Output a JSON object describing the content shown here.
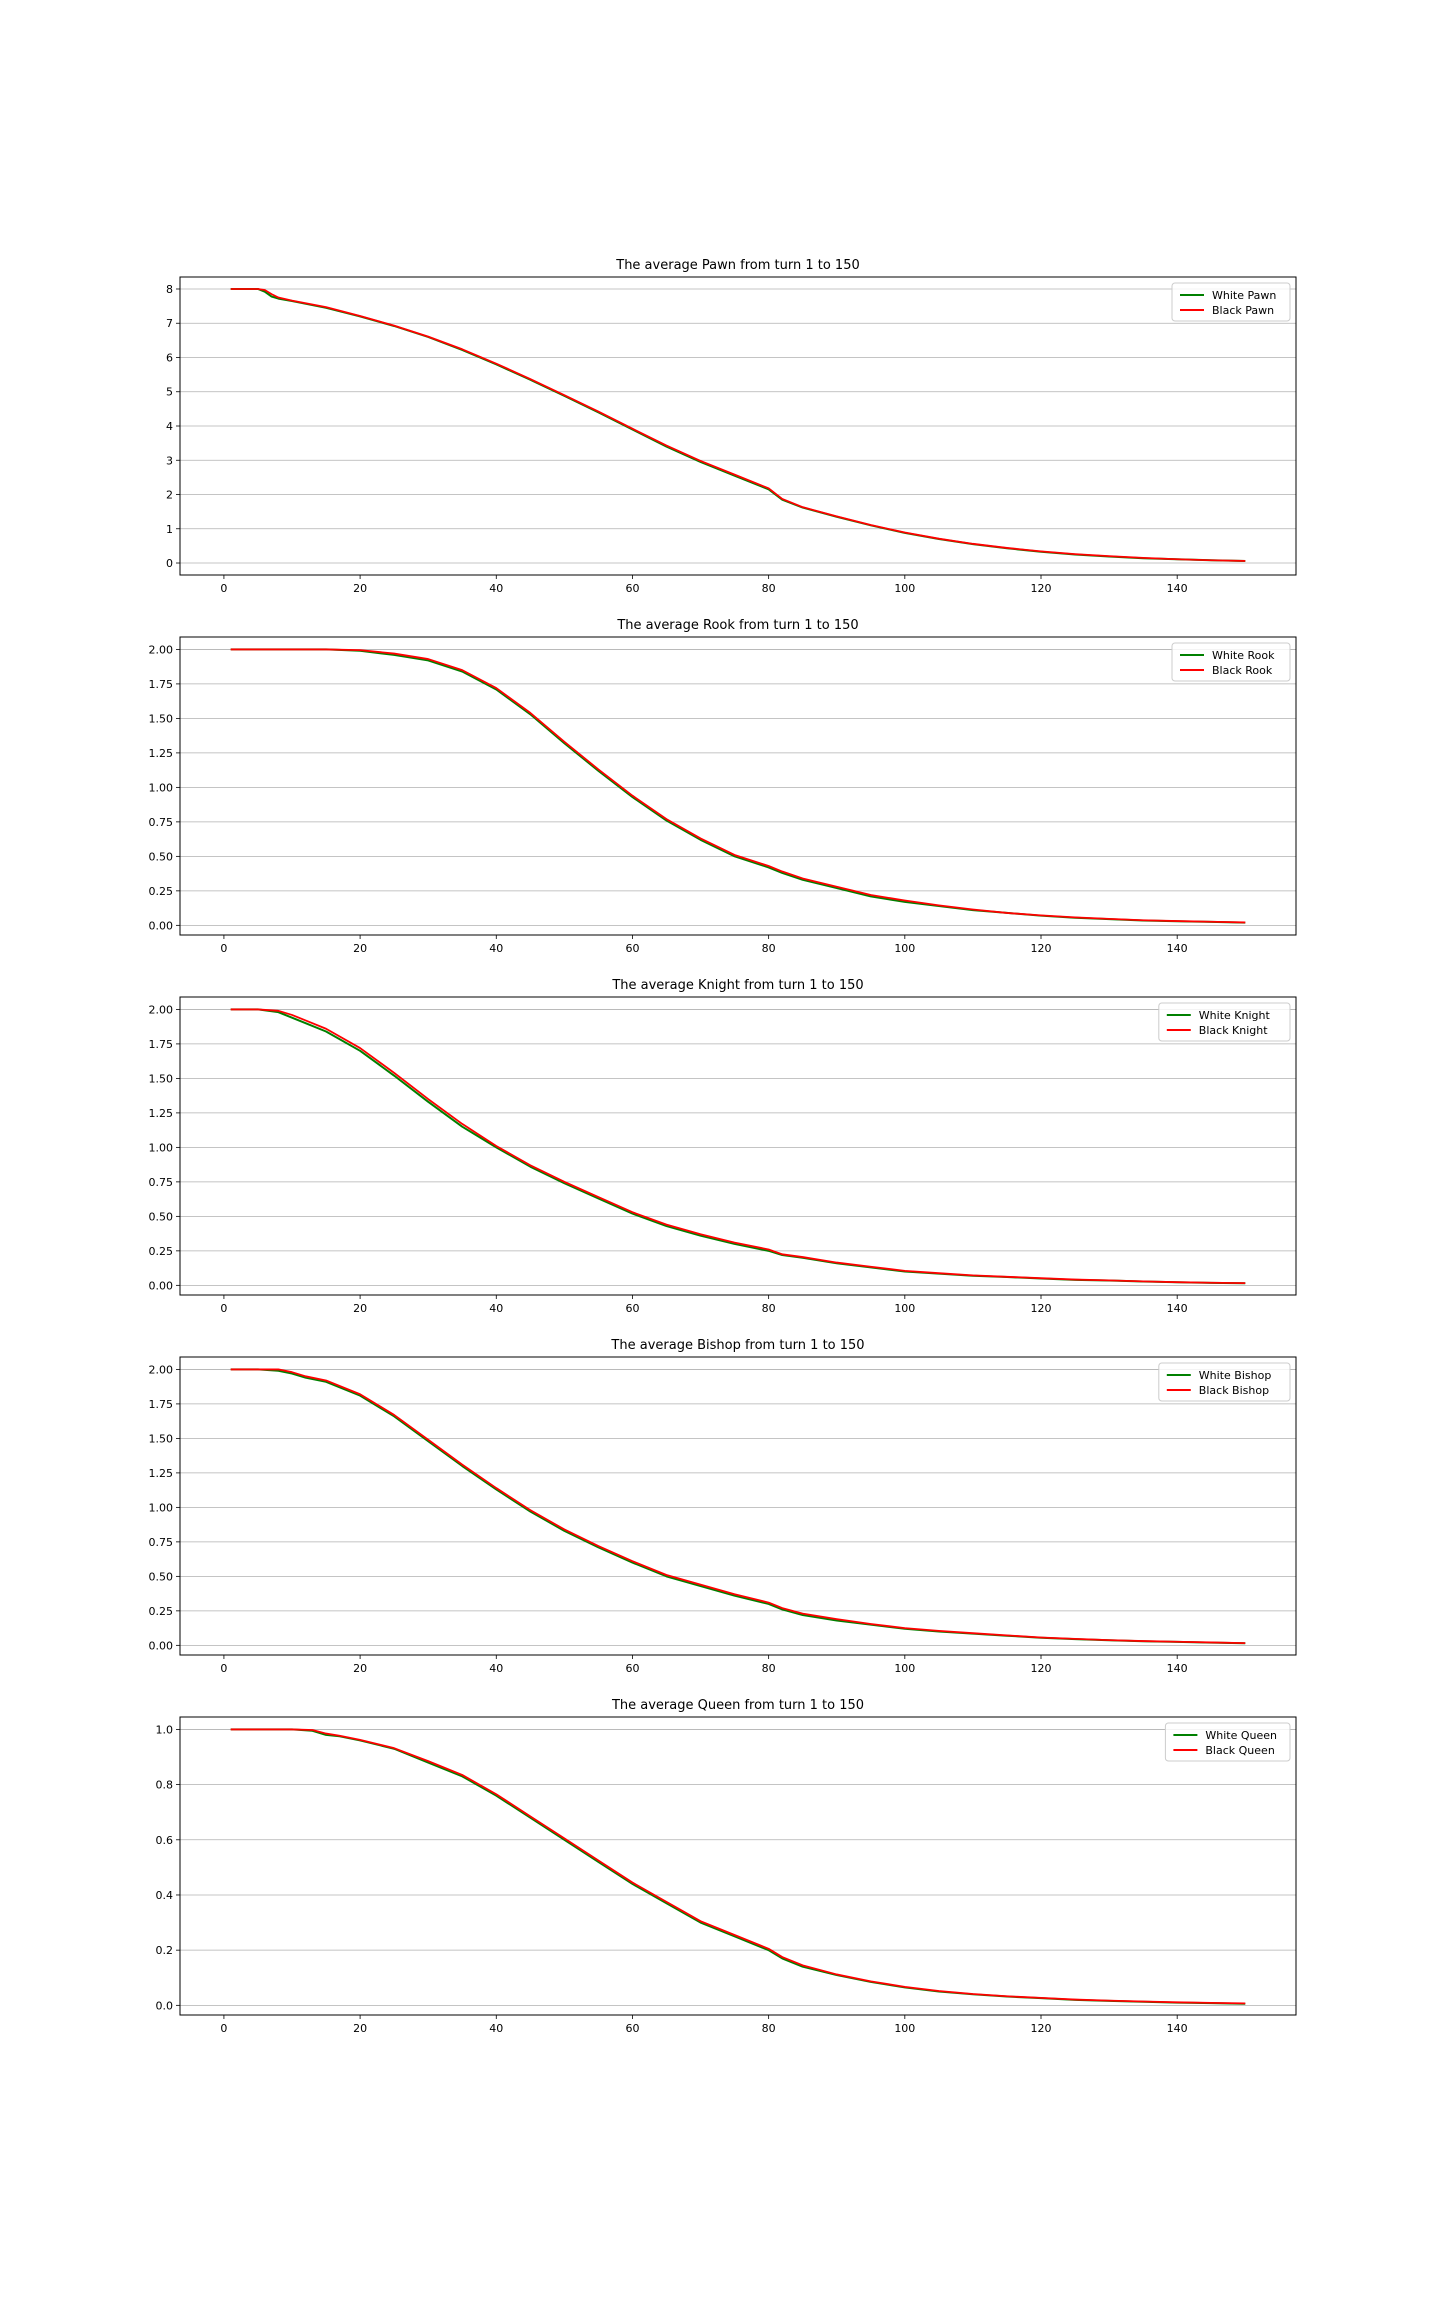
{
  "figure": {
    "style": {
      "background": "#ffffff",
      "axes_edge": "#000000",
      "grid_color": "#b0b0b0"
    }
  },
  "chart_data": [
    {
      "type": "line",
      "title": "The average Pawn from turn 1 to 150",
      "xlabel": "",
      "ylabel": "",
      "xlim": [
        -6.45,
        157.45
      ],
      "ylim": [
        -0.35,
        8.35
      ],
      "xticks": [
        0,
        20,
        40,
        60,
        80,
        100,
        120,
        140
      ],
      "yticks": [
        0,
        1,
        2,
        3,
        4,
        5,
        6,
        7,
        8
      ],
      "ytick_labels": [
        "0",
        "1",
        "2",
        "3",
        "4",
        "5",
        "6",
        "7",
        "8"
      ],
      "grid": "y",
      "legend": "top-right",
      "x": [
        1,
        5,
        6,
        7,
        8,
        10,
        15,
        20,
        25,
        30,
        35,
        40,
        45,
        50,
        55,
        60,
        65,
        70,
        75,
        80,
        82,
        85,
        90,
        95,
        100,
        105,
        110,
        115,
        120,
        125,
        130,
        135,
        140,
        145,
        150
      ],
      "series": [
        {
          "name": "White Pawn",
          "color": "#008000",
          "values": [
            8.0,
            8.0,
            7.92,
            7.78,
            7.72,
            7.65,
            7.45,
            7.2,
            6.92,
            6.6,
            6.22,
            5.8,
            5.35,
            4.88,
            4.4,
            3.9,
            3.4,
            2.95,
            2.55,
            2.15,
            1.85,
            1.62,
            1.35,
            1.1,
            0.88,
            0.7,
            0.55,
            0.43,
            0.33,
            0.25,
            0.19,
            0.14,
            0.11,
            0.08,
            0.06
          ]
        },
        {
          "name": "Black Pawn",
          "color": "#ff0000",
          "values": [
            8.0,
            8.0,
            7.97,
            7.85,
            7.75,
            7.66,
            7.47,
            7.21,
            6.93,
            6.61,
            6.24,
            5.82,
            5.37,
            4.9,
            4.42,
            3.92,
            3.43,
            2.98,
            2.58,
            2.18,
            1.87,
            1.63,
            1.36,
            1.11,
            0.89,
            0.71,
            0.56,
            0.44,
            0.34,
            0.26,
            0.2,
            0.15,
            0.11,
            0.08,
            0.06
          ]
        }
      ]
    },
    {
      "type": "line",
      "title": "The average Rook from turn 1 to 150",
      "xlabel": "",
      "ylabel": "",
      "xlim": [
        -6.45,
        157.45
      ],
      "ylim": [
        -0.07,
        2.09
      ],
      "xticks": [
        0,
        20,
        40,
        60,
        80,
        100,
        120,
        140
      ],
      "yticks": [
        0,
        0.25,
        0.5,
        0.75,
        1.0,
        1.25,
        1.5,
        1.75,
        2.0
      ],
      "ytick_labels": [
        "0.00",
        "0.25",
        "0.50",
        "0.75",
        "1.00",
        "1.25",
        "1.50",
        "1.75",
        "2.00"
      ],
      "grid": "y",
      "legend": "top-right",
      "x": [
        1,
        10,
        15,
        20,
        25,
        30,
        35,
        40,
        45,
        50,
        55,
        60,
        65,
        70,
        75,
        80,
        82,
        85,
        90,
        95,
        100,
        105,
        110,
        115,
        120,
        125,
        130,
        135,
        140,
        145,
        150
      ],
      "series": [
        {
          "name": "White Rook",
          "color": "#008000",
          "values": [
            2.0,
            2.0,
            2.0,
            1.99,
            1.96,
            1.92,
            1.84,
            1.71,
            1.53,
            1.32,
            1.12,
            0.93,
            0.76,
            0.62,
            0.5,
            0.42,
            0.38,
            0.33,
            0.27,
            0.21,
            0.17,
            0.14,
            0.11,
            0.09,
            0.07,
            0.055,
            0.045,
            0.035,
            0.03,
            0.025,
            0.02
          ]
        },
        {
          "name": "Black Rook",
          "color": "#ff0000",
          "values": [
            2.0,
            2.0,
            2.0,
            1.995,
            1.97,
            1.93,
            1.85,
            1.72,
            1.54,
            1.33,
            1.13,
            0.94,
            0.77,
            0.63,
            0.51,
            0.43,
            0.39,
            0.34,
            0.28,
            0.22,
            0.18,
            0.145,
            0.115,
            0.09,
            0.072,
            0.058,
            0.047,
            0.037,
            0.031,
            0.026,
            0.021
          ]
        }
      ]
    },
    {
      "type": "line",
      "title": "The average Knight from turn 1 to 150",
      "xlabel": "",
      "ylabel": "",
      "xlim": [
        -6.45,
        157.45
      ],
      "ylim": [
        -0.07,
        2.09
      ],
      "xticks": [
        0,
        20,
        40,
        60,
        80,
        100,
        120,
        140
      ],
      "yticks": [
        0,
        0.25,
        0.5,
        0.75,
        1.0,
        1.25,
        1.5,
        1.75,
        2.0
      ],
      "ytick_labels": [
        "0.00",
        "0.25",
        "0.50",
        "0.75",
        "1.00",
        "1.25",
        "1.50",
        "1.75",
        "2.00"
      ],
      "grid": "y",
      "legend": "top-right",
      "x": [
        1,
        5,
        8,
        10,
        12,
        15,
        20,
        25,
        30,
        35,
        40,
        45,
        50,
        55,
        60,
        65,
        70,
        75,
        80,
        82,
        85,
        90,
        95,
        100,
        105,
        110,
        115,
        120,
        125,
        130,
        135,
        140,
        145,
        150
      ],
      "series": [
        {
          "name": "White Knight",
          "color": "#008000",
          "values": [
            2.0,
            2.0,
            1.98,
            1.94,
            1.9,
            1.84,
            1.7,
            1.52,
            1.33,
            1.15,
            1.0,
            0.86,
            0.74,
            0.63,
            0.52,
            0.43,
            0.36,
            0.3,
            0.25,
            0.22,
            0.2,
            0.16,
            0.13,
            0.1,
            0.085,
            0.07,
            0.06,
            0.05,
            0.04,
            0.035,
            0.028,
            0.022,
            0.018,
            0.015
          ]
        },
        {
          "name": "Black Knight",
          "color": "#ff0000",
          "values": [
            2.0,
            2.0,
            1.99,
            1.96,
            1.92,
            1.86,
            1.72,
            1.54,
            1.35,
            1.17,
            1.01,
            0.87,
            0.75,
            0.64,
            0.53,
            0.44,
            0.37,
            0.31,
            0.26,
            0.225,
            0.205,
            0.165,
            0.135,
            0.105,
            0.088,
            0.072,
            0.062,
            0.052,
            0.042,
            0.036,
            0.029,
            0.023,
            0.019,
            0.016
          ]
        }
      ]
    },
    {
      "type": "line",
      "title": "The average Bishop from turn 1 to 150",
      "xlabel": "",
      "ylabel": "",
      "xlim": [
        -6.45,
        157.45
      ],
      "ylim": [
        -0.07,
        2.09
      ],
      "xticks": [
        0,
        20,
        40,
        60,
        80,
        100,
        120,
        140
      ],
      "yticks": [
        0,
        0.25,
        0.5,
        0.75,
        1.0,
        1.25,
        1.5,
        1.75,
        2.0
      ],
      "ytick_labels": [
        "0.00",
        "0.25",
        "0.50",
        "0.75",
        "1.00",
        "1.25",
        "1.50",
        "1.75",
        "2.00"
      ],
      "grid": "y",
      "legend": "top-right",
      "x": [
        1,
        5,
        8,
        10,
        12,
        15,
        20,
        25,
        30,
        35,
        40,
        45,
        50,
        55,
        60,
        65,
        70,
        75,
        80,
        82,
        85,
        90,
        95,
        100,
        105,
        110,
        115,
        120,
        125,
        130,
        135,
        140,
        145,
        150
      ],
      "series": [
        {
          "name": "White Bishop",
          "color": "#008000",
          "values": [
            2.0,
            2.0,
            1.99,
            1.97,
            1.94,
            1.91,
            1.81,
            1.66,
            1.48,
            1.3,
            1.13,
            0.97,
            0.83,
            0.71,
            0.6,
            0.5,
            0.43,
            0.36,
            0.3,
            0.26,
            0.22,
            0.18,
            0.15,
            0.12,
            0.1,
            0.085,
            0.07,
            0.055,
            0.045,
            0.037,
            0.03,
            0.025,
            0.02,
            0.015
          ]
        },
        {
          "name": "Black Bishop",
          "color": "#ff0000",
          "values": [
            2.0,
            2.0,
            2.0,
            1.98,
            1.95,
            1.92,
            1.82,
            1.67,
            1.49,
            1.31,
            1.14,
            0.98,
            0.84,
            0.72,
            0.61,
            0.51,
            0.44,
            0.37,
            0.31,
            0.27,
            0.23,
            0.19,
            0.155,
            0.125,
            0.105,
            0.088,
            0.072,
            0.057,
            0.047,
            0.038,
            0.031,
            0.026,
            0.021,
            0.016
          ]
        }
      ]
    },
    {
      "type": "line",
      "title": "The average Queen from turn 1 to 150",
      "xlabel": "",
      "ylabel": "",
      "xlim": [
        -6.45,
        157.45
      ],
      "ylim": [
        -0.035,
        1.045
      ],
      "xticks": [
        0,
        20,
        40,
        60,
        80,
        100,
        120,
        140
      ],
      "yticks": [
        0,
        0.2,
        0.4,
        0.6,
        0.8,
        1.0
      ],
      "ytick_labels": [
        "0.0",
        "0.2",
        "0.4",
        "0.6",
        "0.8",
        "1.0"
      ],
      "grid": "y",
      "legend": "top-right",
      "x": [
        1,
        10,
        13,
        15,
        17,
        20,
        25,
        30,
        35,
        40,
        45,
        50,
        55,
        60,
        65,
        70,
        75,
        80,
        82,
        85,
        90,
        95,
        100,
        105,
        110,
        115,
        120,
        125,
        130,
        135,
        140,
        145,
        150
      ],
      "series": [
        {
          "name": "White Queen",
          "color": "#008000",
          "values": [
            1.0,
            1.0,
            0.995,
            0.98,
            0.975,
            0.96,
            0.93,
            0.88,
            0.83,
            0.76,
            0.68,
            0.6,
            0.52,
            0.44,
            0.37,
            0.3,
            0.25,
            0.2,
            0.17,
            0.14,
            0.11,
            0.085,
            0.065,
            0.05,
            0.04,
            0.032,
            0.026,
            0.02,
            0.016,
            0.013,
            0.01,
            0.008,
            0.006
          ]
        },
        {
          "name": "Black Queen",
          "color": "#ff0000",
          "values": [
            1.0,
            1.0,
            0.998,
            0.985,
            0.977,
            0.962,
            0.932,
            0.885,
            0.835,
            0.765,
            0.685,
            0.605,
            0.525,
            0.445,
            0.375,
            0.305,
            0.255,
            0.205,
            0.175,
            0.145,
            0.112,
            0.087,
            0.067,
            0.052,
            0.041,
            0.033,
            0.027,
            0.021,
            0.017,
            0.014,
            0.011,
            0.009,
            0.007
          ]
        }
      ]
    }
  ]
}
